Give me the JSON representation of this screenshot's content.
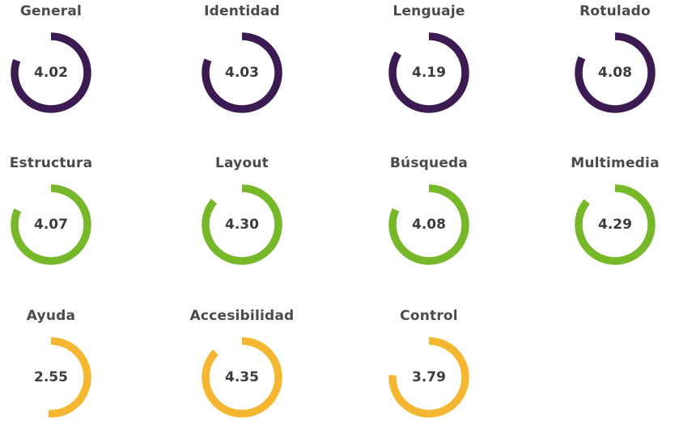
{
  "colors": {
    "scale_max": 5,
    "groups": [
      "#3c1a52",
      "#76b82a",
      "#f5b731"
    ]
  },
  "chart_data": {
    "type": "donut",
    "max": 5,
    "items": [
      {
        "label": "General",
        "value": 4.02,
        "color": "#3c1a52"
      },
      {
        "label": "Identidad",
        "value": 4.03,
        "color": "#3c1a52"
      },
      {
        "label": "Lenguaje",
        "value": 4.19,
        "color": "#3c1a52"
      },
      {
        "label": "Rotulado",
        "value": 4.08,
        "color": "#3c1a52"
      },
      {
        "label": "Estructura",
        "value": 4.07,
        "color": "#76b82a"
      },
      {
        "label": "Layout",
        "value": 4.3,
        "color": "#76b82a"
      },
      {
        "label": "Búsqueda",
        "value": 4.08,
        "color": "#76b82a"
      },
      {
        "label": "Multimedia",
        "value": 4.29,
        "color": "#76b82a"
      },
      {
        "label": "Ayuda",
        "value": 2.55,
        "color": "#f5b731"
      },
      {
        "label": "Accesibilidad",
        "value": 4.35,
        "color": "#f5b731"
      },
      {
        "label": "Control",
        "value": 3.79,
        "color": "#f5b731"
      }
    ],
    "value_labels": [
      "4.02",
      "4.03",
      "4.19",
      "4.08",
      "4.07",
      "4.30",
      "4.08",
      "4.29",
      "2.55",
      "4.35",
      "3.79"
    ]
  }
}
